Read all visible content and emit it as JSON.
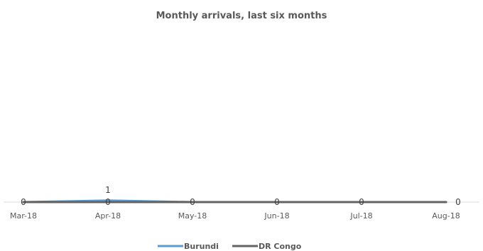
{
  "chart_data": {
    "type": "line",
    "title": "Monthly arrivals, last six months",
    "categories": [
      "Mar-18",
      "Apr-18",
      "May-18",
      "Jun-18",
      "Jul-18",
      "Aug-18"
    ],
    "series": [
      {
        "name": "Burundi",
        "values": [
          0,
          1,
          0,
          0,
          0,
          0
        ],
        "color": "#5B9BD5"
      },
      {
        "name": "DR Congo",
        "values": [
          0,
          0,
          0,
          0,
          0,
          0
        ],
        "color": "#636363"
      }
    ],
    "data_labels": {
      "top": [
        "",
        "1",
        "",
        "",
        "",
        ""
      ],
      "bottom": [
        "0",
        "0",
        "0",
        "0",
        "0",
        "0"
      ]
    },
    "ylim": [
      0,
      100
    ],
    "grid": false,
    "legend_position": "bottom"
  }
}
